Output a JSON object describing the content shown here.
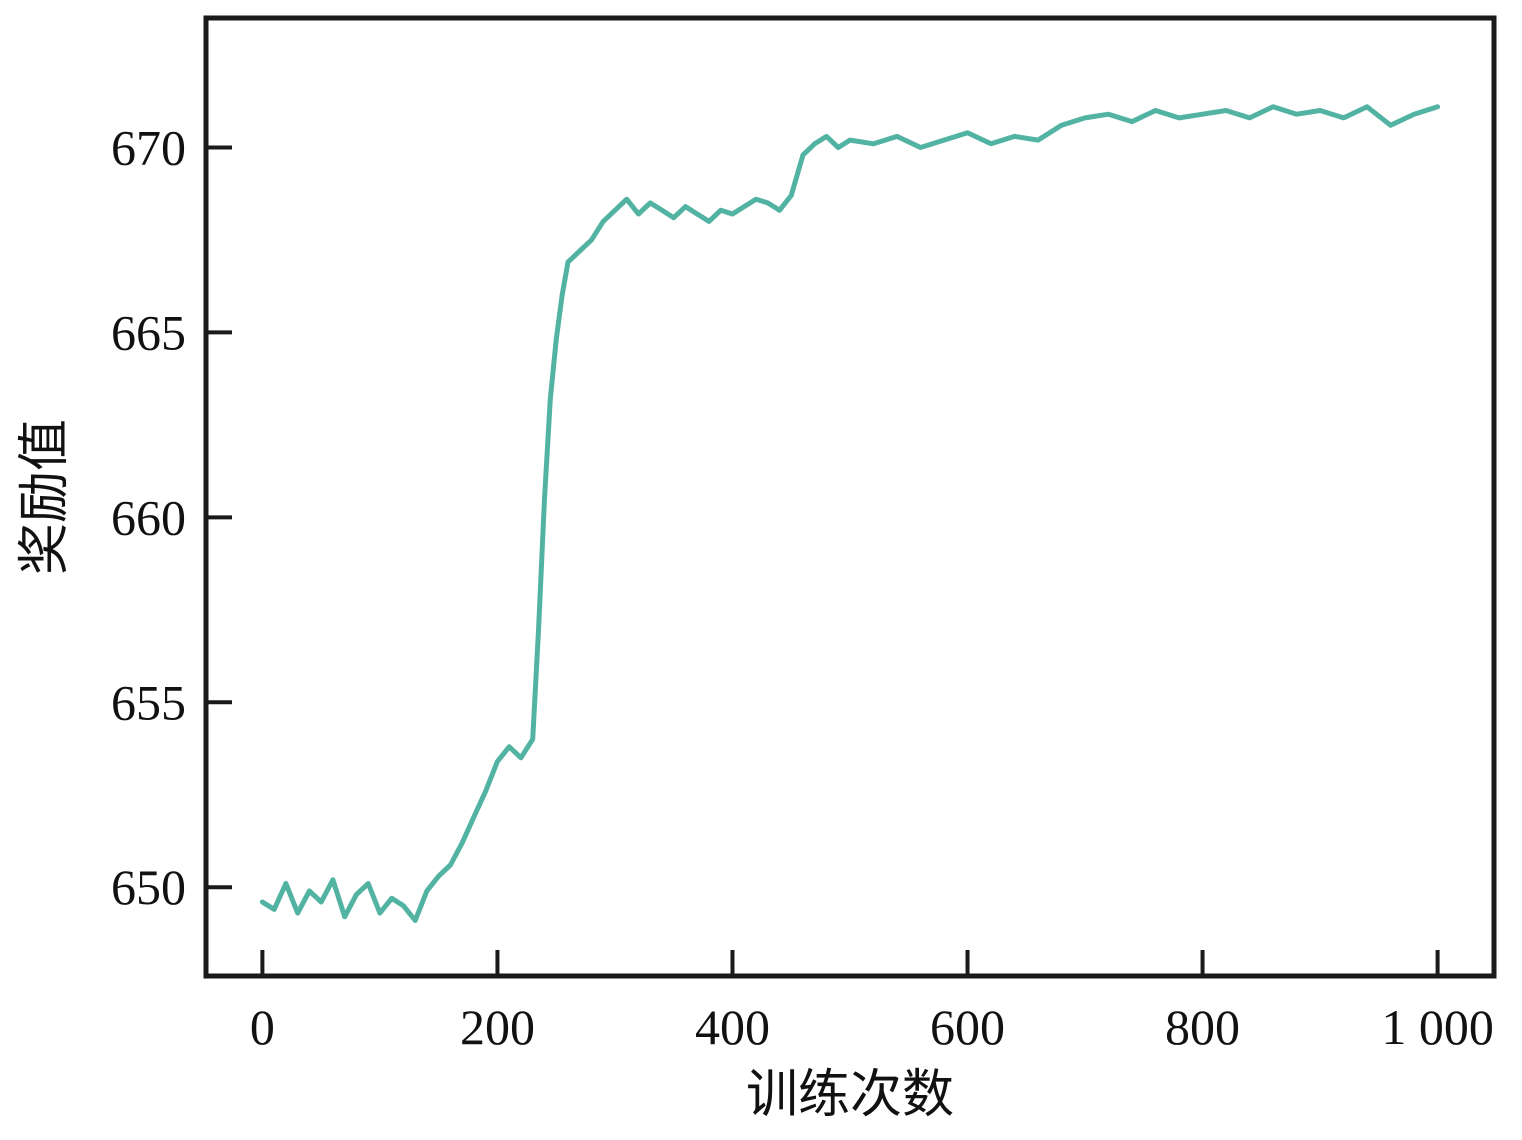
{
  "chart_data": {
    "type": "line",
    "title": "",
    "xlabel": "训练次数",
    "ylabel": "奖励值",
    "xlim": [
      -48,
      1048
    ],
    "ylim": [
      647.6,
      673.5
    ],
    "x_ticks": [
      {
        "value": 0,
        "label": "0"
      },
      {
        "value": 200,
        "label": "200"
      },
      {
        "value": 400,
        "label": "400"
      },
      {
        "value": 600,
        "label": "600"
      },
      {
        "value": 800,
        "label": "800"
      },
      {
        "value": 1000,
        "label": "1 000"
      }
    ],
    "y_ticks": [
      {
        "value": 650,
        "label": "650"
      },
      {
        "value": 655,
        "label": "655"
      },
      {
        "value": 660,
        "label": "660"
      },
      {
        "value": 665,
        "label": "665"
      },
      {
        "value": 670,
        "label": "670"
      }
    ],
    "grid": false,
    "line_color": "#52b3a3",
    "series": [
      {
        "values": [
          [
            0,
            649.6
          ],
          [
            10,
            649.4
          ],
          [
            20,
            650.1
          ],
          [
            30,
            649.3
          ],
          [
            40,
            649.9
          ],
          [
            50,
            649.6
          ],
          [
            60,
            650.2
          ],
          [
            70,
            649.2
          ],
          [
            80,
            649.8
          ],
          [
            90,
            650.1
          ],
          [
            100,
            649.3
          ],
          [
            110,
            649.7
          ],
          [
            120,
            649.5
          ],
          [
            130,
            649.1
          ],
          [
            140,
            649.9
          ],
          [
            150,
            650.3
          ],
          [
            160,
            650.6
          ],
          [
            170,
            651.2
          ],
          [
            180,
            651.9
          ],
          [
            190,
            652.6
          ],
          [
            200,
            653.4
          ],
          [
            210,
            653.8
          ],
          [
            220,
            653.5
          ],
          [
            230,
            654.0
          ],
          [
            235,
            657.0
          ],
          [
            240,
            660.5
          ],
          [
            245,
            663.2
          ],
          [
            250,
            664.8
          ],
          [
            255,
            666.0
          ],
          [
            260,
            666.9
          ],
          [
            270,
            667.2
          ],
          [
            280,
            667.5
          ],
          [
            290,
            668.0
          ],
          [
            300,
            668.3
          ],
          [
            310,
            668.6
          ],
          [
            320,
            668.2
          ],
          [
            330,
            668.5
          ],
          [
            340,
            668.3
          ],
          [
            350,
            668.1
          ],
          [
            360,
            668.4
          ],
          [
            370,
            668.2
          ],
          [
            380,
            668.0
          ],
          [
            390,
            668.3
          ],
          [
            400,
            668.2
          ],
          [
            410,
            668.4
          ],
          [
            420,
            668.6
          ],
          [
            430,
            668.5
          ],
          [
            440,
            668.3
          ],
          [
            450,
            668.7
          ],
          [
            460,
            669.8
          ],
          [
            470,
            670.1
          ],
          [
            480,
            670.3
          ],
          [
            490,
            670.0
          ],
          [
            500,
            670.2
          ],
          [
            520,
            670.1
          ],
          [
            540,
            670.3
          ],
          [
            560,
            670.0
          ],
          [
            580,
            670.2
          ],
          [
            600,
            670.4
          ],
          [
            620,
            670.1
          ],
          [
            640,
            670.3
          ],
          [
            660,
            670.2
          ],
          [
            680,
            670.6
          ],
          [
            700,
            670.8
          ],
          [
            720,
            670.9
          ],
          [
            740,
            670.7
          ],
          [
            760,
            671.0
          ],
          [
            780,
            670.8
          ],
          [
            800,
            670.9
          ],
          [
            820,
            671.0
          ],
          [
            840,
            670.8
          ],
          [
            860,
            671.1
          ],
          [
            880,
            670.9
          ],
          [
            900,
            671.0
          ],
          [
            920,
            670.8
          ],
          [
            940,
            671.1
          ],
          [
            960,
            670.6
          ],
          [
            980,
            670.9
          ],
          [
            1000,
            671.1
          ]
        ]
      }
    ]
  }
}
